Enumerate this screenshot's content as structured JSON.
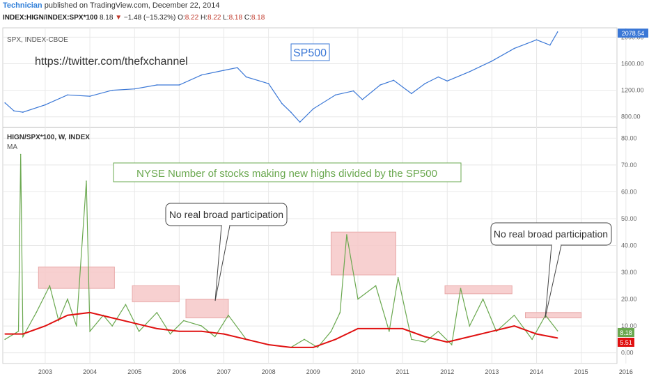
{
  "header": {
    "author": "Technician",
    "published": "published on TradingView.com, December 22, 2014",
    "symbol": "INDEX:HIGN/INDEX:SPX*100",
    "last": "8.18",
    "change": "−1.48 (−15.32%)",
    "o_label": "O:",
    "o": "8.22",
    "h_label": "H:",
    "h": "8.22",
    "l_label": "L:",
    "l": "8.18",
    "c_label": "C:",
    "c": "8.18"
  },
  "top_pane": {
    "label": "SPX, INDEX-CBOE",
    "title_box": "SP500",
    "twitter": "https://twitter.com/thefxchannel",
    "price_badge": "2078.54"
  },
  "bottom_pane": {
    "label": "HIGN/SPX*100, W, INDEX",
    "ma_label": "MA",
    "title_box": "NYSE Number of stocks making new highs divided by the SP500",
    "callout_1": "No real broad participation",
    "callout_2": "No real broad participation",
    "badge_value": "8.18",
    "badge_ma": "5.51"
  },
  "colors": {
    "spx_line": "#3a77d6",
    "ratio_line": "#6aa84f",
    "ma_line": "#e01010",
    "highlight": "#f6c8c8",
    "grid": "#e8e8e8"
  },
  "chart_data": [
    {
      "type": "line",
      "series": [
        {
          "name": "SPX",
          "x": [
            2002.6,
            2002.8,
            2003.0,
            2003.5,
            2004.0,
            2004.5,
            2005.0,
            2005.5,
            2006.0,
            2006.5,
            2007.0,
            2007.5,
            2007.8,
            2008.0,
            2008.5,
            2008.8,
            2009.0,
            2009.2,
            2009.5,
            2010.0,
            2010.4,
            2010.6,
            2011.0,
            2011.3,
            2011.7,
            2012.0,
            2012.3,
            2012.5,
            2013.0,
            2013.5,
            2014.0,
            2014.5,
            2014.8,
            2014.97
          ],
          "values": [
            1010,
            890,
            870,
            980,
            1130,
            1110,
            1200,
            1220,
            1280,
            1280,
            1430,
            1500,
            1540,
            1400,
            1300,
            1000,
            870,
            720,
            920,
            1130,
            1190,
            1060,
            1280,
            1350,
            1150,
            1300,
            1400,
            1340,
            1480,
            1640,
            1830,
            1960,
            1880,
            2078.54
          ]
        }
      ],
      "ylim": [
        640,
        2140
      ],
      "yticks": [
        "800.00",
        "1200.00",
        "1600.00",
        "2000.00"
      ]
    },
    {
      "type": "line",
      "series": [
        {
          "name": "HIGN/SPX*100",
          "x": [
            2002.6,
            2002.9,
            2002.95,
            2003.0,
            2003.3,
            2003.6,
            2003.8,
            2004.0,
            2004.2,
            2004.42,
            2004.5,
            2004.8,
            2005.0,
            2005.3,
            2005.6,
            2006.0,
            2006.3,
            2006.6,
            2007.0,
            2007.3,
            2007.6,
            2008.0,
            2008.5,
            2009.0,
            2009.3,
            2009.6,
            2009.9,
            2010.1,
            2010.25,
            2010.5,
            2010.9,
            2011.2,
            2011.4,
            2011.7,
            2012.0,
            2012.3,
            2012.6,
            2012.8,
            2013.0,
            2013.3,
            2013.6,
            2014.0,
            2014.4,
            2014.7,
            2014.97
          ],
          "values": [
            5,
            8,
            74,
            6,
            15,
            25,
            12,
            20,
            10,
            64,
            8,
            14,
            10,
            18,
            8,
            15,
            7,
            12,
            10,
            6,
            14,
            5,
            3,
            2,
            5,
            2,
            8,
            15,
            44,
            20,
            25,
            8,
            28,
            5,
            4,
            8,
            3,
            24,
            10,
            20,
            8,
            14,
            5,
            14,
            8.18
          ]
        },
        {
          "name": "MA",
          "x": [
            2002.6,
            2003.0,
            2003.5,
            2004.0,
            2004.5,
            2005.0,
            2005.5,
            2006.0,
            2006.5,
            2007.0,
            2007.5,
            2008.0,
            2008.5,
            2009.0,
            2009.5,
            2010.0,
            2010.5,
            2011.0,
            2011.5,
            2012.0,
            2012.5,
            2013.0,
            2013.5,
            2014.0,
            2014.5,
            2014.97
          ],
          "values": [
            7,
            7,
            10,
            14,
            15,
            13,
            11,
            9,
            8,
            8,
            7,
            5,
            3,
            2,
            2,
            5,
            9,
            9,
            9,
            6,
            4,
            6,
            8,
            10,
            7,
            5.51
          ]
        }
      ],
      "ylim": [
        -4,
        84
      ],
      "yticks": [
        "0.00",
        "10.00",
        "20.00",
        "30.00",
        "40.00",
        "50.00",
        "60.00",
        "70.00",
        "80.00"
      ],
      "highlights": [
        {
          "x0": 2003.35,
          "x1": 2005.05,
          "y0": 24,
          "y1": 32
        },
        {
          "x0": 2005.45,
          "x1": 2006.5,
          "y0": 19,
          "y1": 25
        },
        {
          "x0": 2006.65,
          "x1": 2007.6,
          "y0": 13,
          "y1": 20
        },
        {
          "x0": 2009.9,
          "x1": 2011.35,
          "y0": 29,
          "y1": 45
        },
        {
          "x0": 2012.45,
          "x1": 2013.95,
          "y0": 22,
          "y1": 25
        },
        {
          "x0": 2014.25,
          "x1": 2015.5,
          "y0": 13,
          "y1": 15
        }
      ]
    }
  ],
  "x_axis": {
    "labels": [
      "2003",
      "2004",
      "2005",
      "2006",
      "2007",
      "2008",
      "2009",
      "2010",
      "2011",
      "2012",
      "2013",
      "2014",
      "2015",
      "2016"
    ],
    "xlim": [
      2002.55,
      2016.3
    ]
  }
}
